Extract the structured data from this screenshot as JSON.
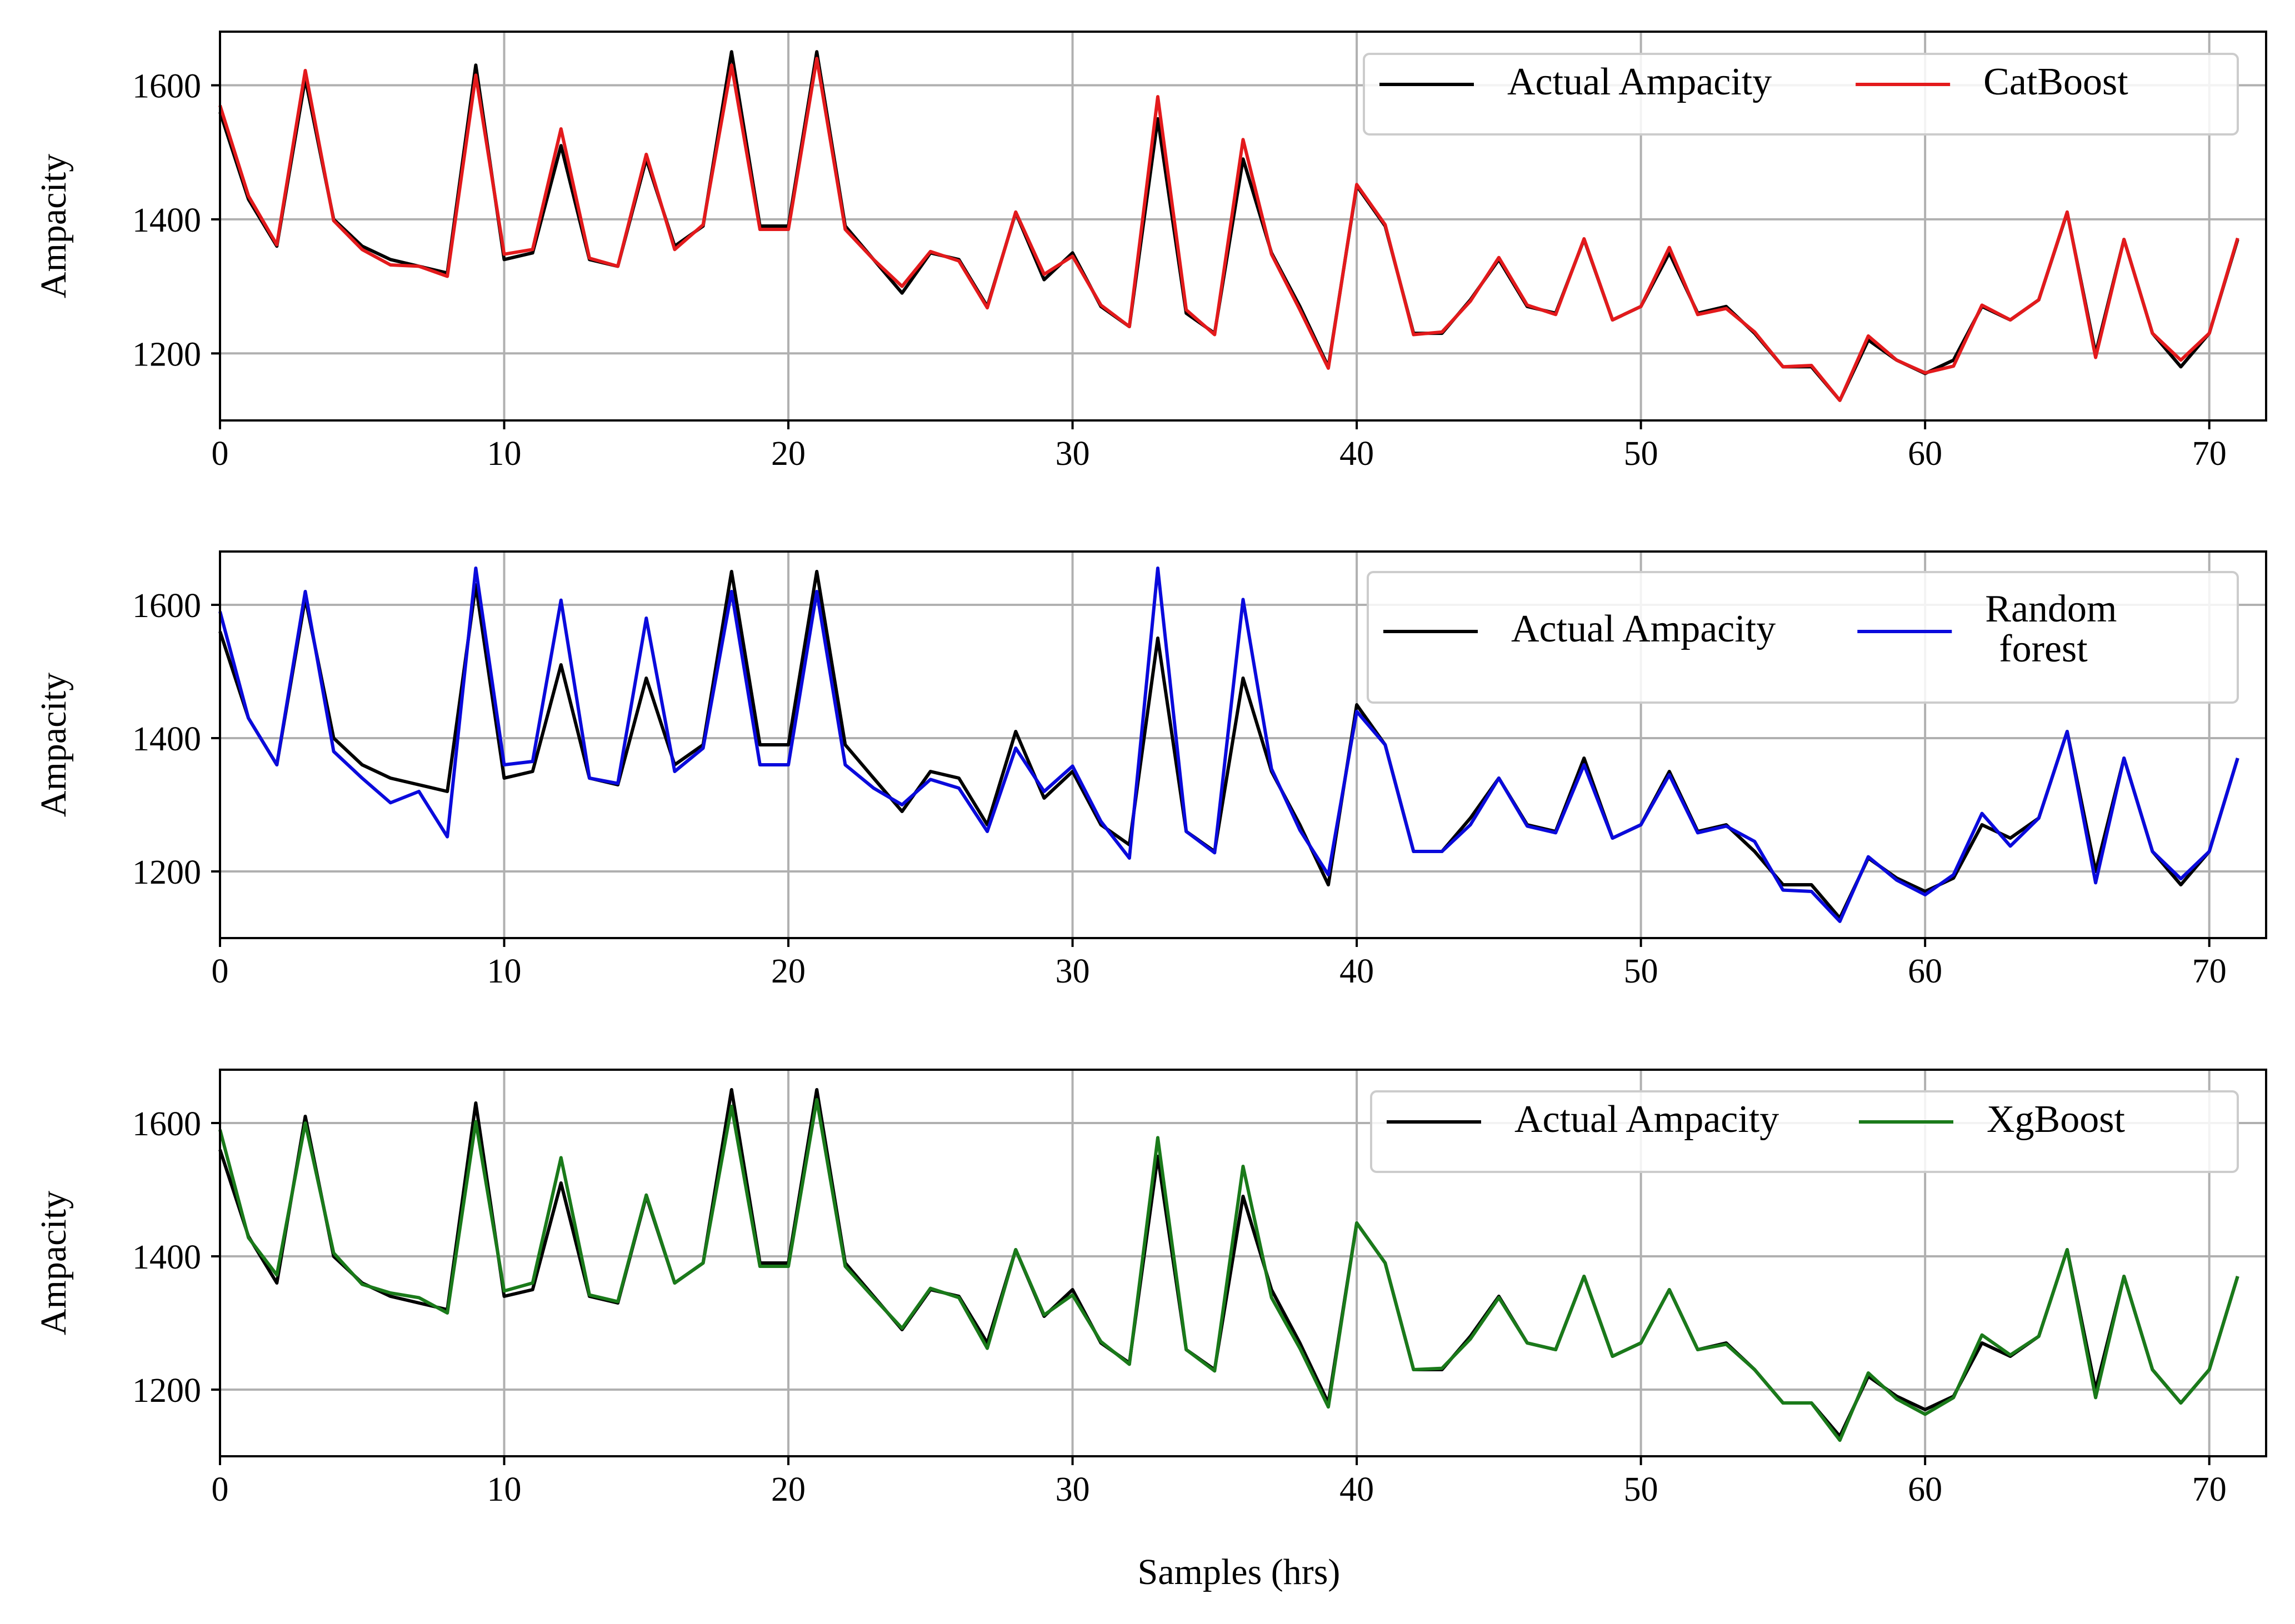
{
  "figure": {
    "xlabel": "Samples (hrs)"
  },
  "chart_data": [
    {
      "type": "line",
      "ylabel": "Ampacity",
      "xlim": [
        0,
        72
      ],
      "ylim": [
        1100,
        1680
      ],
      "x_ticks": [
        0,
        10,
        20,
        30,
        40,
        50,
        60,
        70
      ],
      "y_ticks": [
        1200,
        1400,
        1600
      ],
      "grid": true,
      "legend": {
        "position": "top-right",
        "columns": 2
      },
      "series": [
        {
          "name": "Actual Ampacity",
          "color": "#000000",
          "values": [
            1560,
            1430,
            1360,
            1610,
            1400,
            1360,
            1340,
            1330,
            1320,
            1630,
            1340,
            1350,
            1510,
            1340,
            1330,
            1490,
            1360,
            1390,
            1650,
            1390,
            1390,
            1650,
            1390,
            1340,
            1290,
            1350,
            1340,
            1270,
            1410,
            1310,
            1350,
            1270,
            1240,
            1550,
            1260,
            1230,
            1490,
            1350,
            1270,
            1180,
            1450,
            1390,
            1230,
            1230,
            1280,
            1340,
            1270,
            1260,
            1370,
            1250,
            1270,
            1350,
            1260,
            1270,
            1230,
            1180,
            1180,
            1130,
            1220,
            1190,
            1170,
            1190,
            1270,
            1250,
            1280,
            1410,
            1200,
            1370,
            1230,
            1180,
            1230,
            1370
          ]
        },
        {
          "name": "CatBoost",
          "color": "#e31a1c",
          "values": [
            1570,
            1435,
            1362,
            1622,
            1398,
            1355,
            1332,
            1330,
            1315,
            1615,
            1348,
            1355,
            1535,
            1342,
            1330,
            1497,
            1355,
            1392,
            1630,
            1385,
            1385,
            1640,
            1385,
            1340,
            1300,
            1352,
            1338,
            1268,
            1411,
            1318,
            1345,
            1272,
            1240,
            1583,
            1265,
            1228,
            1519,
            1348,
            1265,
            1178,
            1452,
            1392,
            1228,
            1232,
            1278,
            1343,
            1272,
            1258,
            1371,
            1250,
            1270,
            1358,
            1258,
            1267,
            1232,
            1180,
            1182,
            1130,
            1226,
            1190,
            1171,
            1181,
            1272,
            1250,
            1280,
            1411,
            1194,
            1370,
            1230,
            1190,
            1230,
            1372
          ]
        }
      ]
    },
    {
      "type": "line",
      "ylabel": "Ampacity",
      "xlim": [
        0,
        72
      ],
      "ylim": [
        1100,
        1680
      ],
      "x_ticks": [
        0,
        10,
        20,
        30,
        40,
        50,
        60,
        70
      ],
      "y_ticks": [
        1200,
        1400,
        1600
      ],
      "grid": true,
      "legend": {
        "position": "top-right",
        "columns": 2
      },
      "series": [
        {
          "name": "Actual Ampacity",
          "color": "#000000",
          "values": [
            1560,
            1430,
            1360,
            1610,
            1400,
            1360,
            1340,
            1330,
            1320,
            1630,
            1340,
            1350,
            1510,
            1340,
            1330,
            1490,
            1360,
            1390,
            1650,
            1390,
            1390,
            1650,
            1390,
            1340,
            1290,
            1350,
            1340,
            1270,
            1410,
            1310,
            1350,
            1270,
            1240,
            1550,
            1260,
            1230,
            1490,
            1350,
            1270,
            1180,
            1450,
            1390,
            1230,
            1230,
            1280,
            1340,
            1270,
            1260,
            1370,
            1250,
            1270,
            1350,
            1260,
            1270,
            1230,
            1180,
            1180,
            1130,
            1220,
            1190,
            1170,
            1190,
            1270,
            1250,
            1280,
            1410,
            1200,
            1370,
            1230,
            1180,
            1230,
            1370
          ]
        },
        {
          "name": "Random\nforest",
          "color": "#0a0adc",
          "values": [
            1590,
            1430,
            1360,
            1620,
            1380,
            1340,
            1303,
            1320,
            1252,
            1655,
            1360,
            1365,
            1607,
            1340,
            1332,
            1580,
            1350,
            1385,
            1620,
            1360,
            1360,
            1620,
            1360,
            1325,
            1300,
            1338,
            1325,
            1260,
            1385,
            1320,
            1358,
            1275,
            1220,
            1655,
            1260,
            1228,
            1608,
            1354,
            1262,
            1195,
            1440,
            1390,
            1230,
            1230,
            1270,
            1340,
            1268,
            1258,
            1360,
            1250,
            1270,
            1345,
            1258,
            1268,
            1245,
            1172,
            1170,
            1125,
            1222,
            1187,
            1165,
            1195,
            1287,
            1238,
            1280,
            1410,
            1183,
            1370,
            1230,
            1189,
            1230,
            1370
          ]
        }
      ]
    },
    {
      "type": "line",
      "ylabel": "Ampacity",
      "xlim": [
        0,
        72
      ],
      "ylim": [
        1100,
        1680
      ],
      "x_ticks": [
        0,
        10,
        20,
        30,
        40,
        50,
        60,
        70
      ],
      "y_ticks": [
        1200,
        1400,
        1600
      ],
      "grid": true,
      "legend": {
        "position": "top-right",
        "columns": 2
      },
      "series": [
        {
          "name": "Actual Ampacity",
          "color": "#000000",
          "values": [
            1560,
            1430,
            1360,
            1610,
            1400,
            1360,
            1340,
            1330,
            1320,
            1630,
            1340,
            1350,
            1510,
            1340,
            1330,
            1490,
            1360,
            1390,
            1650,
            1390,
            1390,
            1650,
            1390,
            1340,
            1290,
            1350,
            1340,
            1270,
            1410,
            1310,
            1350,
            1270,
            1240,
            1550,
            1260,
            1230,
            1490,
            1350,
            1270,
            1180,
            1450,
            1390,
            1230,
            1230,
            1280,
            1340,
            1270,
            1260,
            1370,
            1250,
            1270,
            1350,
            1260,
            1270,
            1230,
            1180,
            1180,
            1130,
            1220,
            1190,
            1170,
            1190,
            1270,
            1250,
            1280,
            1410,
            1200,
            1370,
            1230,
            1180,
            1230,
            1370
          ]
        },
        {
          "name": "XgBoost",
          "color": "#1a7a1a",
          "values": [
            1590,
            1428,
            1372,
            1600,
            1405,
            1358,
            1345,
            1338,
            1315,
            1602,
            1348,
            1360,
            1548,
            1342,
            1332,
            1492,
            1360,
            1390,
            1625,
            1385,
            1385,
            1635,
            1385,
            1338,
            1292,
            1352,
            1338,
            1262,
            1410,
            1312,
            1342,
            1272,
            1238,
            1578,
            1260,
            1228,
            1535,
            1338,
            1262,
            1174,
            1450,
            1390,
            1230,
            1232,
            1276,
            1338,
            1270,
            1260,
            1370,
            1250,
            1270,
            1350,
            1260,
            1268,
            1230,
            1180,
            1180,
            1124,
            1225,
            1186,
            1163,
            1188,
            1282,
            1252,
            1280,
            1410,
            1188,
            1370,
            1230,
            1180,
            1230,
            1370
          ]
        }
      ]
    }
  ]
}
